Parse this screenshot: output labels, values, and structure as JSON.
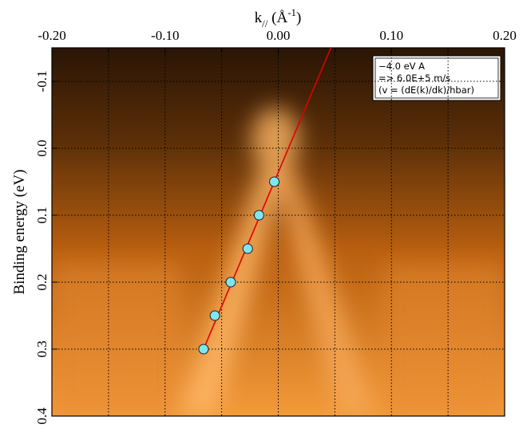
{
  "chart_data": {
    "type": "scatter",
    "x_label": {
      "base": "k",
      "sub": "//",
      "mid": " (Å",
      "sup": "-1",
      "end": ")"
    },
    "y_label": "Binding energy (eV)",
    "annotation": [
      "−4.0 eV A",
      " => 6.0E+5 m/s",
      "(v = (dE(k)/dk)/hbar)"
    ],
    "x": [
      -0.0035,
      -0.017,
      -0.027,
      -0.042,
      -0.056,
      -0.066
    ],
    "series": [
      {
        "color": "#7fe6f0",
        "values": [
          0.05,
          0.1,
          0.15,
          0.2,
          0.25,
          0.3
        ]
      }
    ],
    "fit": {
      "color": "#e00000",
      "x": [
        -0.066,
        0.0465
      ],
      "y": [
        0.3,
        -0.15
      ]
    },
    "xlim": [
      -0.2,
      0.2
    ],
    "ylim": [
      -0.15,
      0.4
    ],
    "y_inverted": true,
    "xticks": [
      {
        "value": -0.2,
        "label": "-0.20"
      },
      {
        "value": -0.1,
        "label": "-0.10"
      },
      {
        "value": 0,
        "label": "0.00"
      },
      {
        "value": 0.1,
        "label": "0.10"
      },
      {
        "value": 0.2,
        "label": "0.20"
      }
    ],
    "xminor": [
      -0.15,
      -0.05,
      0.05,
      0.15
    ],
    "yticks": [
      -0.1,
      {
        "value": 0,
        "label": "0.0"
      },
      0.1,
      0.2,
      0.3,
      0.4
    ],
    "grid": true
  }
}
